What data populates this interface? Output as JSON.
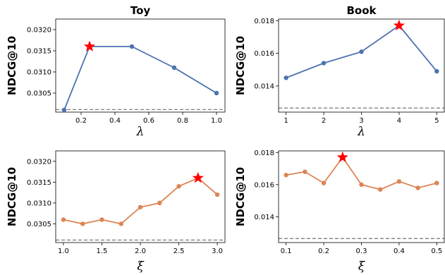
{
  "chart_data": [
    {
      "type": "line",
      "title": "Toy",
      "xlabel": "λ",
      "ylabel": "NDCG@10",
      "x": [
        0.1,
        0.25,
        0.5,
        0.75,
        1.0
      ],
      "series": [
        {
          "values": [
            0.0301,
            0.0316,
            0.0316,
            0.0311,
            0.0305
          ]
        }
      ],
      "best_index": 1,
      "baseline": 0.03011,
      "xlim": [
        0.05,
        1.05
      ],
      "ylim": [
        0.03005,
        0.03225
      ],
      "xticks": [
        0.2,
        0.4,
        0.6,
        0.8,
        1.0
      ],
      "xtick_labels": [
        "0.2",
        "0.4",
        "0.6",
        "0.8",
        "1.0"
      ],
      "yticks": [
        0.0305,
        0.031,
        0.0315,
        0.032
      ],
      "ytick_labels": [
        "0.0305",
        "0.0310",
        "0.0315",
        "0.0320"
      ],
      "color": "#4c72b0",
      "marker_color": "#ff0000",
      "grid": false
    },
    {
      "type": "line",
      "title": "Book",
      "xlabel": "λ",
      "ylabel": "NDCG@10",
      "x": [
        1,
        2,
        3,
        4,
        5
      ],
      "series": [
        {
          "values": [
            0.0145,
            0.0154,
            0.0161,
            0.0177,
            0.0149
          ]
        }
      ],
      "best_index": 3,
      "baseline": 0.01265,
      "xlim": [
        0.8,
        5.2
      ],
      "ylim": [
        0.0124,
        0.0181
      ],
      "xticks": [
        1,
        2,
        3,
        4,
        5
      ],
      "xtick_labels": [
        "1",
        "2",
        "3",
        "4",
        "5"
      ],
      "yticks": [
        0.014,
        0.016,
        0.018
      ],
      "ytick_labels": [
        "0.014",
        "0.016",
        "0.018"
      ],
      "color": "#4c72b0",
      "marker_color": "#ff0000",
      "grid": false
    },
    {
      "type": "line",
      "title": "",
      "xlabel": "ξ",
      "ylabel": "NDCG@10",
      "x": [
        1.0,
        1.25,
        1.5,
        1.75,
        2.0,
        2.25,
        2.5,
        2.75,
        3.0
      ],
      "series": [
        {
          "values": [
            0.0306,
            0.0305,
            0.0306,
            0.0305,
            0.0309,
            0.031,
            0.0314,
            0.0316,
            0.0312
          ]
        }
      ],
      "best_index": 7,
      "baseline": 0.03011,
      "xlim": [
        0.9,
        3.1
      ],
      "ylim": [
        0.03005,
        0.03225
      ],
      "xticks": [
        1.0,
        1.5,
        2.0,
        2.5,
        3.0
      ],
      "xtick_labels": [
        "1.0",
        "1.5",
        "2.0",
        "2.5",
        "3.0"
      ],
      "yticks": [
        0.0305,
        0.031,
        0.0315,
        0.032
      ],
      "ytick_labels": [
        "0.0305",
        "0.0310",
        "0.0315",
        "0.0320"
      ],
      "color": "#dd8452",
      "marker_color": "#ff0000",
      "grid": false
    },
    {
      "type": "line",
      "title": "",
      "xlabel": "ξ",
      "ylabel": "NDCG@10",
      "x": [
        0.1,
        0.15,
        0.2,
        0.25,
        0.3,
        0.35,
        0.4,
        0.45,
        0.5
      ],
      "series": [
        {
          "values": [
            0.0166,
            0.0168,
            0.0161,
            0.0177,
            0.016,
            0.0157,
            0.0162,
            0.0158,
            0.0161
          ]
        }
      ],
      "best_index": 3,
      "baseline": 0.01265,
      "xlim": [
        0.08,
        0.52
      ],
      "ylim": [
        0.0124,
        0.0181
      ],
      "xticks": [
        0.1,
        0.2,
        0.3,
        0.4,
        0.5
      ],
      "xtick_labels": [
        "0.1",
        "0.2",
        "0.3",
        "0.4",
        "0.5"
      ],
      "yticks": [
        0.014,
        0.016,
        0.018
      ],
      "ytick_labels": [
        "0.014",
        "0.016",
        "0.018"
      ],
      "color": "#dd8452",
      "marker_color": "#ff0000",
      "grid": false
    }
  ]
}
